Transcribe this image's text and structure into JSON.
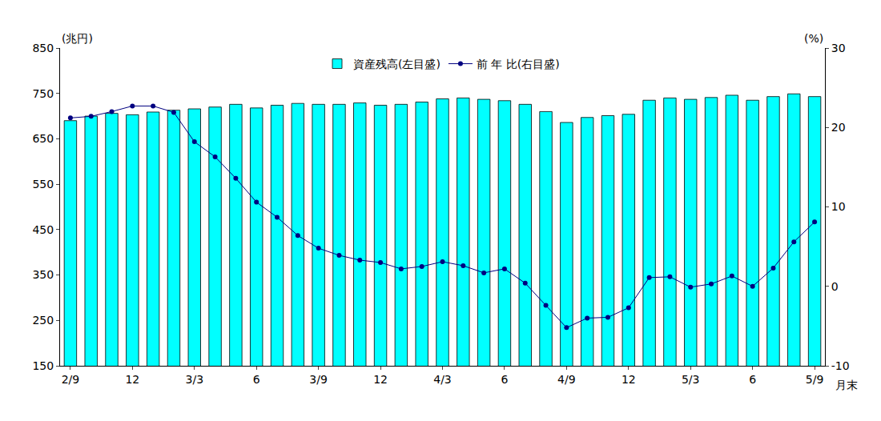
{
  "chart_data": {
    "type": "bar",
    "categories": [
      "2/9",
      null,
      null,
      "12",
      null,
      null,
      "3/3",
      null,
      null,
      "6",
      null,
      null,
      "3/9",
      null,
      null,
      "12",
      null,
      null,
      "4/3",
      null,
      null,
      "6",
      null,
      null,
      "4/9",
      null,
      null,
      "12",
      null,
      null,
      "5/3",
      null,
      null,
      "6",
      null,
      null,
      "5/9"
    ],
    "x_label": "月末",
    "y_label": "(兆円)",
    "y2_label": "(%)",
    "series": [
      {
        "name": "資産残高(左目盛)",
        "type": "bar",
        "color": "#00ffff",
        "values": [
          690,
          700,
          706,
          703,
          709,
          713,
          716,
          720,
          726,
          718,
          724,
          728,
          726,
          726,
          729,
          724,
          726,
          731,
          738,
          740,
          737,
          734,
          726,
          710,
          686,
          697,
          701,
          704,
          735,
          740,
          737,
          741,
          746,
          735,
          743,
          749,
          743
        ]
      },
      {
        "name": "前 年 比(右目盛)",
        "type": "line",
        "axis": "y2",
        "color": "#000080",
        "marker": "circle",
        "values": [
          21.2,
          21.4,
          22.0,
          22.7,
          22.7,
          21.9,
          18.2,
          16.3,
          13.6,
          10.6,
          8.7,
          6.4,
          4.8,
          3.9,
          3.3,
          3.0,
          2.2,
          2.5,
          3.1,
          2.6,
          1.7,
          2.2,
          0.4,
          -2.4,
          -5.2,
          -4.0,
          -3.9,
          -2.7,
          1.1,
          1.2,
          -0.1,
          0.3,
          1.3,
          0.0,
          2.3,
          5.6,
          8.1
        ]
      }
    ],
    "ylim": [
      150,
      850
    ],
    "yticks": [
      150,
      250,
      350,
      450,
      550,
      650,
      750,
      850
    ],
    "y2lim": [
      -10,
      30
    ],
    "y2ticks": [
      -10,
      0,
      10,
      20,
      30
    ],
    "legend": "top",
    "grid": false
  }
}
